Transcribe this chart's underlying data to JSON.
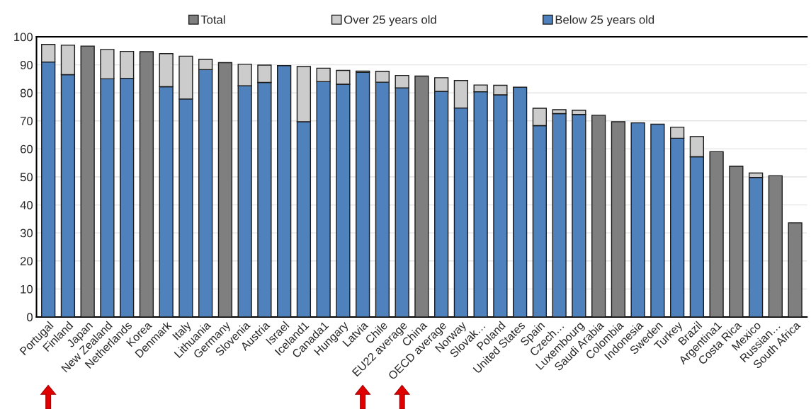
{
  "chart_data": {
    "type": "bar",
    "stacked": true,
    "categories": [
      "Portugal",
      "Finland",
      "Japan",
      "New Zealand",
      "Netherlands",
      "Korea",
      "Denmark",
      "Italy",
      "Lithuania",
      "Germany",
      "Slovenia",
      "Austria",
      "Israel",
      "Iceland1",
      "Canada1",
      "Hungary",
      "Latvia",
      "Chile",
      "EU22 average",
      "China",
      "OECD average",
      "Norway",
      "Slovak…",
      "Poland",
      "United States",
      "Spain",
      "Czech…",
      "Luxembourg",
      "Saudi Arabia",
      "Colombia",
      "Indonesia",
      "Sweden",
      "Turkey",
      "Brazil",
      "Argentina1",
      "Costa Rica",
      "Mexico",
      "Russian…",
      "South Africa"
    ],
    "series": [
      {
        "name": "Below 25 years old",
        "color": "#4f81bd",
        "values": [
          91,
          86.5,
          null,
          85,
          85.2,
          null,
          82.2,
          77.8,
          88.3,
          null,
          82.5,
          83.7,
          89.7,
          69.7,
          84,
          83.1,
          87.3,
          83.8,
          81.8,
          null,
          80.5,
          74.6,
          80.4,
          79.3,
          82,
          68.3,
          72.6,
          72.3,
          null,
          null,
          69.3,
          68.8,
          63.8,
          57.2,
          null,
          null,
          49.8,
          null,
          null
        ]
      },
      {
        "name": "Over 25 years old",
        "color": "#cccccc",
        "values": [
          6.3,
          10.5,
          null,
          10.5,
          9.6,
          null,
          11.8,
          15.3,
          3.7,
          null,
          7.7,
          6.2,
          null,
          19.7,
          4.8,
          4.9,
          0.5,
          3.9,
          4.4,
          null,
          4.9,
          9.8,
          2.4,
          3.4,
          null,
          6.2,
          1.4,
          1.5,
          null,
          null,
          null,
          null,
          3.9,
          7.2,
          null,
          null,
          1.6,
          null,
          null
        ]
      },
      {
        "name": "Total",
        "color": "#7f7f7f",
        "values": [
          null,
          null,
          96.7,
          null,
          null,
          94.7,
          null,
          null,
          null,
          90.8,
          null,
          null,
          null,
          null,
          null,
          null,
          null,
          null,
          null,
          86,
          null,
          null,
          null,
          null,
          null,
          null,
          null,
          null,
          72,
          69.7,
          null,
          null,
          null,
          null,
          59,
          53.8,
          null,
          50.4,
          33.6
        ]
      }
    ],
    "ylim": [
      0,
      100
    ],
    "yticks": [
      0,
      10,
      20,
      30,
      40,
      50,
      60,
      70,
      80,
      90,
      100
    ],
    "grid": "y",
    "legend": "top"
  }
}
